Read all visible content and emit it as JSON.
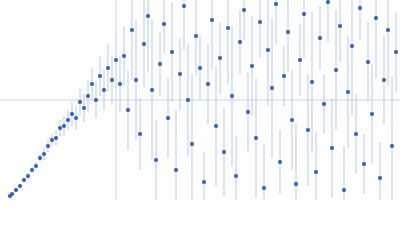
{
  "chart_data": {
    "type": "scatter",
    "xlim": [
      0,
      1
    ],
    "ylim": [
      0,
      1
    ],
    "xgrid": [
      0.29
    ],
    "ygrid": [
      0.5
    ],
    "error_color": "#b9c9ea",
    "series": [
      {
        "color": "#3a63bd",
        "x": [
          0.025,
          0.03,
          0.04,
          0.05,
          0.06,
          0.07,
          0.08,
          0.09,
          0.1,
          0.11,
          0.12,
          0.13,
          0.14,
          0.15,
          0.16,
          0.17,
          0.18,
          0.19,
          0.2,
          0.21,
          0.22,
          0.23,
          0.24,
          0.25,
          0.26,
          0.27,
          0.28,
          0.29,
          0.3,
          0.31,
          0.32,
          0.33,
          0.34,
          0.35,
          0.36,
          0.37,
          0.38,
          0.39,
          0.4,
          0.41,
          0.42,
          0.43,
          0.44,
          0.45,
          0.46,
          0.47,
          0.48,
          0.49,
          0.5,
          0.51,
          0.52,
          0.53,
          0.54,
          0.55,
          0.56,
          0.57,
          0.58,
          0.59,
          0.6,
          0.61,
          0.62,
          0.63,
          0.64,
          0.65,
          0.66,
          0.67,
          0.68,
          0.69,
          0.7,
          0.71,
          0.72,
          0.73,
          0.74,
          0.75,
          0.76,
          0.77,
          0.78,
          0.79,
          0.8,
          0.81,
          0.82,
          0.83,
          0.84,
          0.85,
          0.86,
          0.87,
          0.88,
          0.89,
          0.9,
          0.91,
          0.92,
          0.93,
          0.94,
          0.95,
          0.96,
          0.97,
          0.98,
          0.99
        ],
        "values": [
          0.02,
          0.03,
          0.05,
          0.07,
          0.1,
          0.12,
          0.15,
          0.17,
          0.21,
          0.23,
          0.27,
          0.3,
          0.31,
          0.36,
          0.37,
          0.4,
          0.43,
          0.41,
          0.49,
          0.46,
          0.52,
          0.58,
          0.5,
          0.62,
          0.55,
          0.66,
          0.6,
          0.7,
          0.58,
          0.72,
          0.45,
          0.85,
          0.6,
          0.33,
          0.78,
          0.92,
          0.55,
          0.2,
          0.68,
          0.88,
          0.41,
          0.74,
          0.15,
          0.63,
          0.97,
          0.5,
          0.28,
          0.82,
          0.66,
          0.09,
          0.58,
          0.9,
          0.37,
          0.71,
          0.24,
          0.86,
          0.52,
          0.12,
          0.79,
          0.95,
          0.44,
          0.67,
          0.31,
          0.89,
          0.06,
          0.75,
          0.56,
          0.98,
          0.19,
          0.62,
          0.84,
          0.4,
          0.08,
          0.7,
          0.93,
          0.35,
          0.59,
          0.14,
          0.81,
          0.48,
          0.99,
          0.26,
          0.65,
          0.87,
          0.05,
          0.54,
          0.77,
          0.33,
          0.96,
          0.18,
          0.69,
          0.43,
          0.91,
          0.11,
          0.6,
          0.85,
          0.27,
          0.74
        ],
        "errors": [
          0.005,
          0.005,
          0.01,
          0.01,
          0.01,
          0.015,
          0.015,
          0.02,
          0.02,
          0.03,
          0.03,
          0.03,
          0.04,
          0.04,
          0.05,
          0.05,
          0.06,
          0.06,
          0.07,
          0.07,
          0.08,
          0.08,
          0.09,
          0.1,
          0.1,
          0.12,
          0.12,
          0.14,
          0.14,
          0.15,
          0.2,
          0.25,
          0.3,
          0.18,
          0.22,
          0.28,
          0.35,
          0.2,
          0.16,
          0.15,
          0.2,
          0.25,
          0.3,
          0.18,
          0.22,
          0.28,
          0.35,
          0.2,
          0.16,
          0.15,
          0.2,
          0.25,
          0.3,
          0.18,
          0.22,
          0.28,
          0.35,
          0.2,
          0.16,
          0.15,
          0.2,
          0.25,
          0.3,
          0.18,
          0.22,
          0.28,
          0.35,
          0.2,
          0.16,
          0.15,
          0.2,
          0.25,
          0.3,
          0.18,
          0.22,
          0.28,
          0.35,
          0.2,
          0.16,
          0.15,
          0.2,
          0.25,
          0.3,
          0.18,
          0.22,
          0.28,
          0.35,
          0.2,
          0.16,
          0.15,
          0.2,
          0.25,
          0.3,
          0.18,
          0.22,
          0.28,
          0.35,
          0.2
        ]
      }
    ]
  }
}
